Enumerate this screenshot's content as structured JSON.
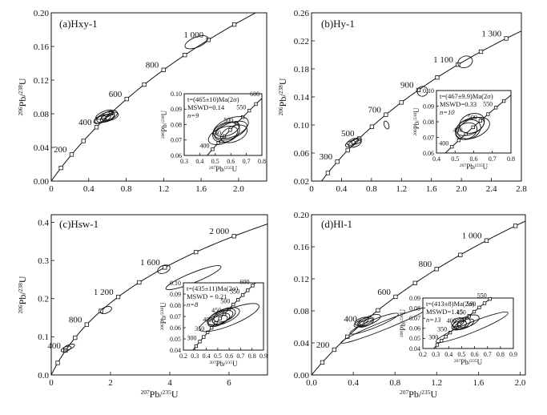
{
  "figure": {
    "shared_xlabel": "207Pb/235U",
    "shared_ylabel": "206Pb/238U"
  },
  "chart_data": [
    {
      "type": "scatter",
      "panel_label": "(a)Hxy-1",
      "xlim": [
        0,
        2.3
      ],
      "ylim": [
        0,
        0.2
      ],
      "xticks": [
        0,
        0.4,
        0.8,
        1.2,
        1.6,
        2.0
      ],
      "xtick_labels": [
        "0",
        "0.4",
        "0.8",
        "1.2",
        "1.6",
        "2.0"
      ],
      "yticks": [
        0,
        0.04,
        0.08,
        0.12,
        0.16,
        0.2
      ],
      "ytick_labels": [
        "0.00",
        "0.04",
        "0.08",
        "0.12",
        "0.16",
        "0.20"
      ],
      "xlabel": "",
      "ylabel": "206Pb/238U",
      "concordia_labels": [
        "200",
        "400",
        "600",
        "800",
        "1 000"
      ],
      "concordia_label_ages": [
        200,
        400,
        600,
        800,
        1000
      ],
      "ellipses": [
        {
          "x": 0.55,
          "y": 0.074,
          "rx": 0.09,
          "ry": 0.004
        },
        {
          "x": 0.58,
          "y": 0.076,
          "rx": 0.1,
          "ry": 0.005
        },
        {
          "x": 0.6,
          "y": 0.075,
          "rx": 0.08,
          "ry": 0.004
        },
        {
          "x": 0.62,
          "y": 0.078,
          "rx": 0.09,
          "ry": 0.005
        },
        {
          "x": 0.52,
          "y": 0.073,
          "rx": 0.07,
          "ry": 0.004
        },
        {
          "x": 0.65,
          "y": 0.077,
          "rx": 0.07,
          "ry": 0.004
        },
        {
          "x": 0.57,
          "y": 0.079,
          "rx": 0.1,
          "ry": 0.004
        },
        {
          "x": 1.55,
          "y": 0.165,
          "rx": 0.13,
          "ry": 0.006
        }
      ],
      "inset": {
        "xlim": [
          0.3,
          0.8
        ],
        "ylim": [
          0.06,
          0.1
        ],
        "xticks": [
          0.3,
          0.4,
          0.5,
          0.6,
          0.7,
          0.8
        ],
        "xtick_labels": [
          "0.3",
          "0.4",
          "0.5",
          "0.6",
          "0.7",
          "0.8"
        ],
        "yticks": [
          0.06,
          0.07,
          0.08,
          0.09,
          0.1
        ],
        "ytick_labels": [
          "0.06",
          "0.07",
          "0.08",
          "0.09",
          "0.10"
        ],
        "xlabel": "207Pb/235U",
        "ylabel": "206Pb/238U",
        "concordia_labels": [
          "400",
          "450",
          "500",
          "550",
          "600"
        ],
        "concordia_label_ages": [
          400,
          450,
          500,
          550,
          600
        ],
        "annotation": [
          "t=(465±10)Ma(2σ)",
          "MSWD=0.14",
          "n=9"
        ],
        "ellipses": [
          {
            "x": 0.55,
            "y": 0.073,
            "rx": 0.1,
            "ry": 0.005
          },
          {
            "x": 0.57,
            "y": 0.075,
            "rx": 0.09,
            "ry": 0.006
          },
          {
            "x": 0.6,
            "y": 0.076,
            "rx": 0.11,
            "ry": 0.005
          },
          {
            "x": 0.58,
            "y": 0.077,
            "rx": 0.08,
            "ry": 0.004
          },
          {
            "x": 0.62,
            "y": 0.074,
            "rx": 0.09,
            "ry": 0.005
          },
          {
            "x": 0.6,
            "y": 0.078,
            "rx": 0.12,
            "ry": 0.006
          }
        ]
      }
    },
    {
      "type": "scatter",
      "panel_label": "(b)Hy-1",
      "xlim": [
        0,
        2.8
      ],
      "ylim": [
        0.02,
        0.26
      ],
      "xticks": [
        0,
        0.4,
        0.8,
        1.2,
        1.6,
        2.0,
        2.4,
        2.8
      ],
      "xtick_labels": [
        "0",
        "0.4",
        "0.8",
        "1.2",
        "1.6",
        "2.0",
        "2.4",
        "2.8"
      ],
      "yticks": [
        0.02,
        0.06,
        0.1,
        0.14,
        0.18,
        0.22,
        0.26
      ],
      "ytick_labels": [
        "0.02",
        "0.06",
        "0.10",
        "0.14",
        "0.18",
        "0.22",
        "0.26"
      ],
      "xlabel": "",
      "ylabel": "206Pb/238U",
      "concordia_labels": [
        "300",
        "500",
        "700",
        "900",
        "1 100",
        "1 300"
      ],
      "concordia_label_ages": [
        300,
        500,
        700,
        900,
        1100,
        1300
      ],
      "ellipses": [
        {
          "x": 0.55,
          "y": 0.076,
          "rx": 0.08,
          "ry": 0.004
        },
        {
          "x": 0.58,
          "y": 0.074,
          "rx": 0.09,
          "ry": 0.005
        },
        {
          "x": 0.52,
          "y": 0.073,
          "rx": 0.07,
          "ry": 0.004
        },
        {
          "x": 0.6,
          "y": 0.077,
          "rx": 0.07,
          "ry": 0.004
        },
        {
          "x": 1.0,
          "y": 0.1,
          "rx": 0.03,
          "ry": 0.006
        },
        {
          "x": 1.48,
          "y": 0.148,
          "rx": 0.07,
          "ry": 0.007
        },
        {
          "x": 2.05,
          "y": 0.19,
          "rx": 0.1,
          "ry": 0.008
        }
      ],
      "inset": {
        "xlim": [
          0.4,
          0.8
        ],
        "ylim": [
          0.06,
          0.1
        ],
        "xticks": [
          0.4,
          0.5,
          0.6,
          0.7,
          0.8
        ],
        "xtick_labels": [
          "0.4",
          "0.5",
          "0.6",
          "0.7",
          "0.8"
        ],
        "yticks": [
          0.06,
          0.07,
          0.08,
          0.09,
          0.1
        ],
        "ytick_labels": [
          "0.06",
          "0.07",
          "0.08",
          "0.09",
          "0.10"
        ],
        "xlabel": "207Pb/235U",
        "ylabel": "206Pb/238U",
        "concordia_labels": [
          "400",
          "450",
          "500",
          "550"
        ],
        "concordia_label_ages": [
          400,
          450,
          500,
          550
        ],
        "annotation": [
          "t=(467±9.9)Ma(2σ)",
          "MSWD=0.33",
          "n=10"
        ],
        "ellipses": [
          {
            "x": 0.57,
            "y": 0.075,
            "rx": 0.07,
            "ry": 0.006
          },
          {
            "x": 0.58,
            "y": 0.077,
            "rx": 0.08,
            "ry": 0.005
          },
          {
            "x": 0.6,
            "y": 0.076,
            "rx": 0.09,
            "ry": 0.006
          },
          {
            "x": 0.56,
            "y": 0.074,
            "rx": 0.06,
            "ry": 0.005
          },
          {
            "x": 0.59,
            "y": 0.079,
            "rx": 0.07,
            "ry": 0.006
          }
        ]
      }
    },
    {
      "type": "scatter",
      "panel_label": "(c)Hsw-1",
      "xlim": [
        0,
        7.3
      ],
      "ylim": [
        0,
        0.42
      ],
      "xticks": [
        0,
        2,
        4,
        6
      ],
      "xtick_labels": [
        "0",
        "2",
        "4",
        "6"
      ],
      "yticks": [
        0,
        0.1,
        0.2,
        0.3,
        0.4
      ],
      "ytick_labels": [
        "0.0",
        "0.1",
        "0.2",
        "0.3",
        "0.4"
      ],
      "xlabel": "207Pb/235U",
      "ylabel": "206Pb/238U",
      "concordia_labels": [
        "400",
        "800",
        "1 200",
        "1 600",
        "2 000"
      ],
      "concordia_label_ages": [
        400,
        800,
        1200,
        1600,
        2000
      ],
      "ellipses": [
        {
          "x": 0.5,
          "y": 0.068,
          "rx": 0.18,
          "ry": 0.006
        },
        {
          "x": 0.6,
          "y": 0.073,
          "rx": 0.2,
          "ry": 0.006
        },
        {
          "x": 1.85,
          "y": 0.17,
          "rx": 0.2,
          "ry": 0.008
        },
        {
          "x": 3.8,
          "y": 0.277,
          "rx": 0.22,
          "ry": 0.01
        },
        {
          "x": 4.8,
          "y": 0.255,
          "rx": 1.0,
          "ry": 0.013
        }
      ],
      "inset": {
        "xlim": [
          0.2,
          0.9
        ],
        "ylim": [
          0.04,
          0.1
        ],
        "xticks": [
          0.2,
          0.3,
          0.4,
          0.5,
          0.6,
          0.7,
          0.8,
          0.9
        ],
        "xtick_labels": [
          "0.2",
          "0.3",
          "0.4",
          "0.5",
          "0.6",
          "0.7",
          "0.8",
          "0.9"
        ],
        "yticks": [
          0.04,
          0.05,
          0.06,
          0.07,
          0.08,
          0.09,
          0.1
        ],
        "ytick_labels": [
          "0.04",
          "0.05",
          "0.06",
          "0.07",
          "0.08",
          "0.09",
          "0.10"
        ],
        "xlabel": "207Pb/235U",
        "ylabel": "206Pb/238U",
        "concordia_labels": [
          "300",
          "350",
          "400",
          "450",
          "500",
          "550",
          "600"
        ],
        "concordia_label_ages": [
          300,
          350,
          400,
          450,
          500,
          550,
          600
        ],
        "annotation": [
          "t=(435±11)Ma(2σ)",
          "MSWD = 0.21",
          "n=8"
        ],
        "ellipses": [
          {
            "x": 0.52,
            "y": 0.069,
            "rx": 0.12,
            "ry": 0.005
          },
          {
            "x": 0.55,
            "y": 0.07,
            "rx": 0.15,
            "ry": 0.006
          },
          {
            "x": 0.53,
            "y": 0.068,
            "rx": 0.08,
            "ry": 0.004
          },
          {
            "x": 0.56,
            "y": 0.071,
            "rx": 0.1,
            "ry": 0.005
          },
          {
            "x": 0.6,
            "y": 0.069,
            "rx": 0.28,
            "ry": 0.007
          },
          {
            "x": 0.5,
            "y": 0.066,
            "rx": 0.09,
            "ry": 0.004
          }
        ]
      }
    },
    {
      "type": "scatter",
      "panel_label": "(d)Hl-1",
      "xlim": [
        0,
        2.05
      ],
      "ylim": [
        0,
        0.2
      ],
      "xticks": [
        0,
        0.4,
        0.8,
        1.2,
        1.6,
        2.0
      ],
      "xtick_labels": [
        "0.0",
        "0.4",
        "0.8",
        "1.2",
        "1.6",
        "2.0"
      ],
      "yticks": [
        0,
        0.04,
        0.08,
        0.12,
        0.16,
        0.2
      ],
      "ytick_labels": [
        "0.00",
        "0.04",
        "0.08",
        "0.12",
        "0.16",
        "0.20"
      ],
      "xlabel": "207Pb/235U",
      "ylabel": "",
      "concordia_labels": [
        "200",
        "400",
        "600",
        "800",
        "1 000"
      ],
      "concordia_label_ages": [
        200,
        400,
        600,
        800,
        1000
      ],
      "ellipses": [
        {
          "x": 0.5,
          "y": 0.066,
          "rx": 0.1,
          "ry": 0.004
        },
        {
          "x": 0.55,
          "y": 0.068,
          "rx": 0.12,
          "ry": 0.005
        },
        {
          "x": 0.52,
          "y": 0.065,
          "rx": 0.08,
          "ry": 0.004
        },
        {
          "x": 0.6,
          "y": 0.064,
          "rx": 0.25,
          "ry": 0.005
        },
        {
          "x": 0.7,
          "y": 0.062,
          "rx": 0.45,
          "ry": 0.005
        },
        {
          "x": 0.48,
          "y": 0.067,
          "rx": 0.07,
          "ry": 0.004
        }
      ],
      "inset": {
        "xlim": [
          0.2,
          0.9
        ],
        "ylim": [
          0.04,
          0.09
        ],
        "xticks": [
          0.2,
          0.3,
          0.4,
          0.5,
          0.6,
          0.7,
          0.8,
          0.9
        ],
        "xtick_labels": [
          "0.2",
          "0.3",
          "0.4",
          "0.5",
          "0.6",
          "0.7",
          "0.8",
          "0.9"
        ],
        "yticks": [
          0.04,
          0.05,
          0.06,
          0.07,
          0.08,
          0.09
        ],
        "ytick_labels": [
          "0.04",
          "0.05",
          "0.06",
          "0.07",
          "0.08",
          "0.09"
        ],
        "xlabel": "207Pb/235U",
        "ylabel": "206Pb/238U",
        "concordia_labels": [
          "300",
          "350",
          "400",
          "450",
          "500",
          "550"
        ],
        "concordia_label_ages": [
          300,
          350,
          400,
          450,
          500,
          550
        ],
        "annotation": [
          "t=(413±8)Ma(2σ)",
          "MSWD=1.15",
          "n=13"
        ],
        "ellipses": [
          {
            "x": 0.48,
            "y": 0.063,
            "rx": 0.06,
            "ry": 0.004
          },
          {
            "x": 0.5,
            "y": 0.065,
            "rx": 0.07,
            "ry": 0.005
          },
          {
            "x": 0.52,
            "y": 0.064,
            "rx": 0.08,
            "ry": 0.004
          },
          {
            "x": 0.47,
            "y": 0.066,
            "rx": 0.05,
            "ry": 0.004
          },
          {
            "x": 0.58,
            "y": 0.061,
            "rx": 0.3,
            "ry": 0.005
          },
          {
            "x": 0.55,
            "y": 0.067,
            "rx": 0.09,
            "ry": 0.005
          }
        ]
      }
    }
  ]
}
